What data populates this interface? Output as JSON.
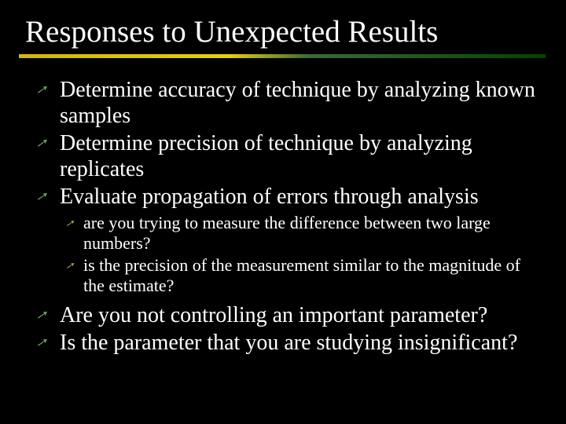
{
  "slide": {
    "title": "Responses to Unexpected Results",
    "background_color": "#000000",
    "title_color": "#ffffff",
    "title_fontsize": 39,
    "body_fontsize": 28,
    "sub_fontsize": 22,
    "divider_gradient": [
      "#d4b800",
      "#e8d000",
      "#3a6a3a",
      "#004400"
    ],
    "bullet_arrow_glyph": "➚",
    "bullets": [
      {
        "text": "Determine accuracy of technique by analyzing known samples",
        "arrow_color": "#6b9b6b"
      },
      {
        "text": "Determine precision of technique by analyzing replicates",
        "arrow_color": "#6b9b6b"
      },
      {
        "text": "Evaluate propagation of errors through analysis",
        "arrow_color": "#6b9b6b"
      }
    ],
    "sub_bullets": [
      {
        "text": "are you trying to measure the difference between two large numbers?",
        "arrow_color": "#c0a84a"
      },
      {
        "text": "is the precision of the measurement similar to the magnitude of the estimate?",
        "arrow_color": "#c0a84a"
      }
    ],
    "bullets2": [
      {
        "text": "Are you not controlling an important parameter?",
        "arrow_color": "#6b9b6b"
      },
      {
        "text": "Is the parameter that you are studying insignificant?",
        "arrow_color": "#6b9b6b"
      }
    ]
  }
}
